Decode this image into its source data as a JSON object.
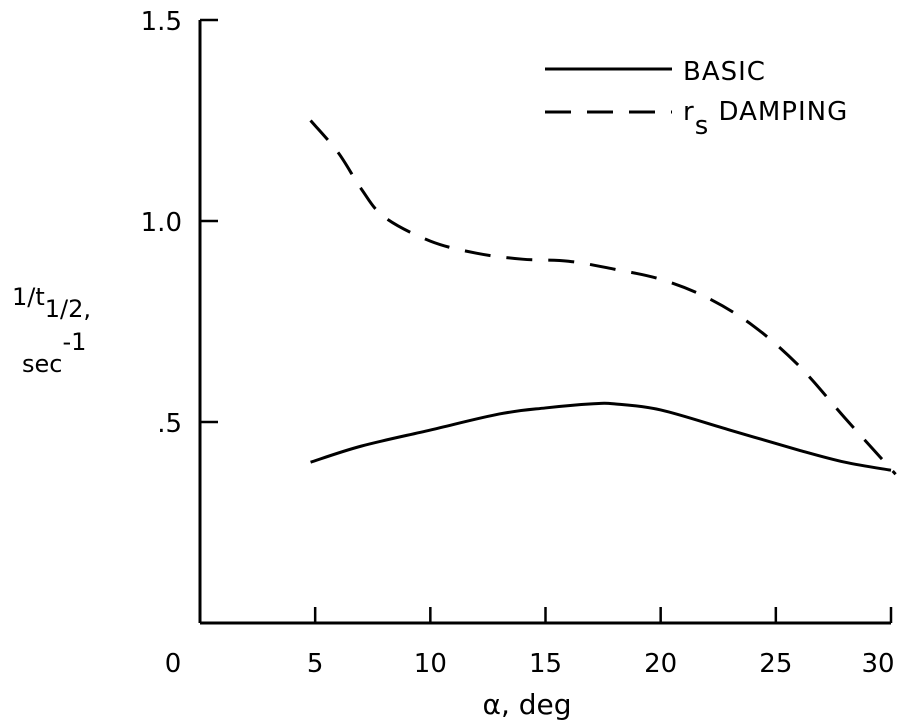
{
  "chart_data": {
    "type": "line",
    "title": "",
    "xlabel": "α, deg",
    "ylabel": {
      "main": "1/t",
      "sub": "1/2",
      "suffix": ",",
      "units": "sec",
      "units_sup": "-1"
    },
    "xlim": [
      0,
      30
    ],
    "ylim": [
      0,
      1.5
    ],
    "x_ticks": [
      5,
      10,
      15,
      20,
      25,
      30
    ],
    "x_tick_labels": [
      "5",
      "10",
      "15",
      "20",
      "25",
      "30"
    ],
    "origin_label": "0",
    "y_ticks": [
      0.5,
      1.0,
      1.5
    ],
    "y_tick_labels": [
      ".5",
      "1.0",
      "1.5"
    ],
    "grid": false,
    "legend_position": "top-right",
    "series": [
      {
        "name": "BASIC",
        "style": "solid",
        "x": [
          4.8,
          7,
          10,
          13,
          15,
          17,
          18,
          20,
          23,
          26,
          28,
          30
        ],
        "y": [
          0.4,
          0.44,
          0.48,
          0.52,
          0.535,
          0.545,
          0.545,
          0.53,
          0.48,
          0.43,
          0.4,
          0.38
        ]
      },
      {
        "name": "r",
        "name_sub": "s",
        "name_suffix": " DAMPING",
        "style": "dashed",
        "x": [
          4.8,
          6,
          7,
          8,
          10,
          12,
          14,
          16,
          18,
          20,
          22,
          24,
          26,
          28,
          30.2
        ],
        "y": [
          1.25,
          1.17,
          1.08,
          1.01,
          0.95,
          0.92,
          0.905,
          0.9,
          0.88,
          0.855,
          0.81,
          0.74,
          0.64,
          0.51,
          0.37
        ]
      }
    ]
  }
}
